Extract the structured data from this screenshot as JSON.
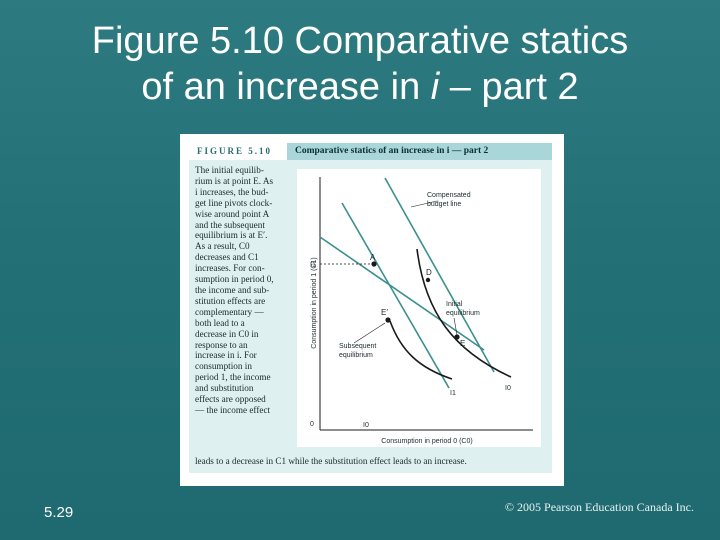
{
  "slide": {
    "title_line1": "Figure 5.10 Comparative statics",
    "title_line2_prefix": "of an increase in ",
    "title_line2_italic": "i",
    "title_line2_suffix": " – part 2",
    "number": "5.29",
    "copyright": "© 2005 Pearson Education Canada Inc."
  },
  "figure": {
    "label": "FIGURE 5.10",
    "caption_title": "Comparative statics of an increase in i — part 2",
    "body_lines": [
      "The initial equilib-",
      "rium is at point E. As",
      "i increases, the bud-",
      "get line pivots clock-",
      "wise around point A",
      "and the subsequent",
      "equilibrium is at E′.",
      "As a result, C0",
      "decreases and C1",
      "increases. For con-",
      "sumption in period 0,",
      "the income and sub-",
      "stitution effects are",
      "complementary —",
      "both lead to a",
      "decrease in C0 in",
      "response to an",
      "increase in i. For",
      "consumption in",
      "period 1, the income",
      "and substitution",
      "effects are opposed",
      "— the income effect"
    ],
    "footer": "leads to a decrease in C1 while the substitution effect leads to an increase."
  },
  "diagram": {
    "y_axis_label": "Consumption in period 1 (C1)",
    "x_axis_label": "Consumption in period 0 (C0)",
    "y_tick": "I1",
    "origin": "0",
    "x_tick": "I0",
    "point_A": "A",
    "point_D": "D",
    "point_E": "E",
    "point_E_prime": "E′",
    "curve_I0": "I0",
    "curve_I1": "I1",
    "label_compensated_1": "Compensated",
    "label_compensated_2": "budget line",
    "label_initial_1": "Initial",
    "label_initial_2": "equilibrium",
    "label_subsequent_1": "Subsequent",
    "label_subsequent_2": "equilibrium"
  },
  "colors": {
    "background": "#237077",
    "budget_line": "#3b8f8f",
    "indifference_curve": "#1a1a1a",
    "caption_bar": "#a9d6d9"
  }
}
